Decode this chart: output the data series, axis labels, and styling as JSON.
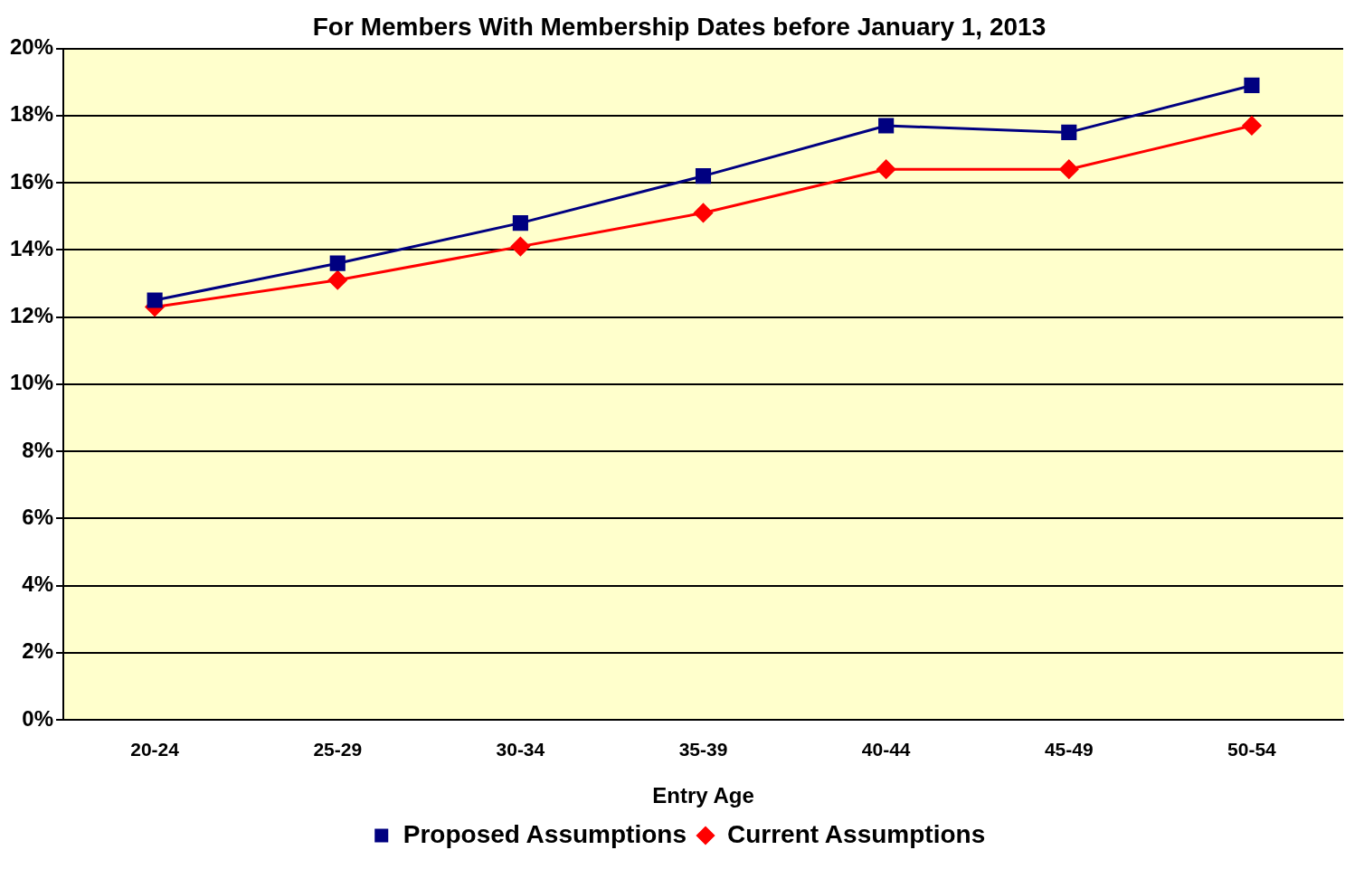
{
  "chart_data": {
    "type": "line",
    "title": "For Members With Membership Dates before January 1, 2013",
    "xlabel": "Entry Age",
    "categories": [
      "20-24",
      "25-29",
      "30-34",
      "35-39",
      "40-44",
      "45-49",
      "50-54"
    ],
    "series": [
      {
        "name": "Current Assumptions",
        "color": "#ff0000",
        "marker": "diamond",
        "values": [
          12.3,
          13.1,
          14.1,
          15.1,
          16.4,
          16.4,
          17.7
        ]
      },
      {
        "name": "Proposed Assumptions",
        "color": "#000080",
        "marker": "square",
        "values": [
          12.5,
          13.6,
          14.8,
          16.2,
          17.7,
          17.5,
          18.9
        ]
      }
    ],
    "ylim": [
      0,
      20
    ],
    "yticks": [
      {
        "value": 0,
        "label": "0%"
      },
      {
        "value": 2,
        "label": "2%"
      },
      {
        "value": 4,
        "label": "4%"
      },
      {
        "value": 6,
        "label": "6%"
      },
      {
        "value": 8,
        "label": "8%"
      },
      {
        "value": 10,
        "label": "10%"
      },
      {
        "value": 12,
        "label": "12%"
      },
      {
        "value": 14,
        "label": "14%"
      },
      {
        "value": 16,
        "label": "16%"
      },
      {
        "value": 18,
        "label": "18%"
      },
      {
        "value": 20,
        "label": "20%"
      }
    ],
    "grid": "y",
    "legend": "bottom",
    "line_style": "solid"
  }
}
